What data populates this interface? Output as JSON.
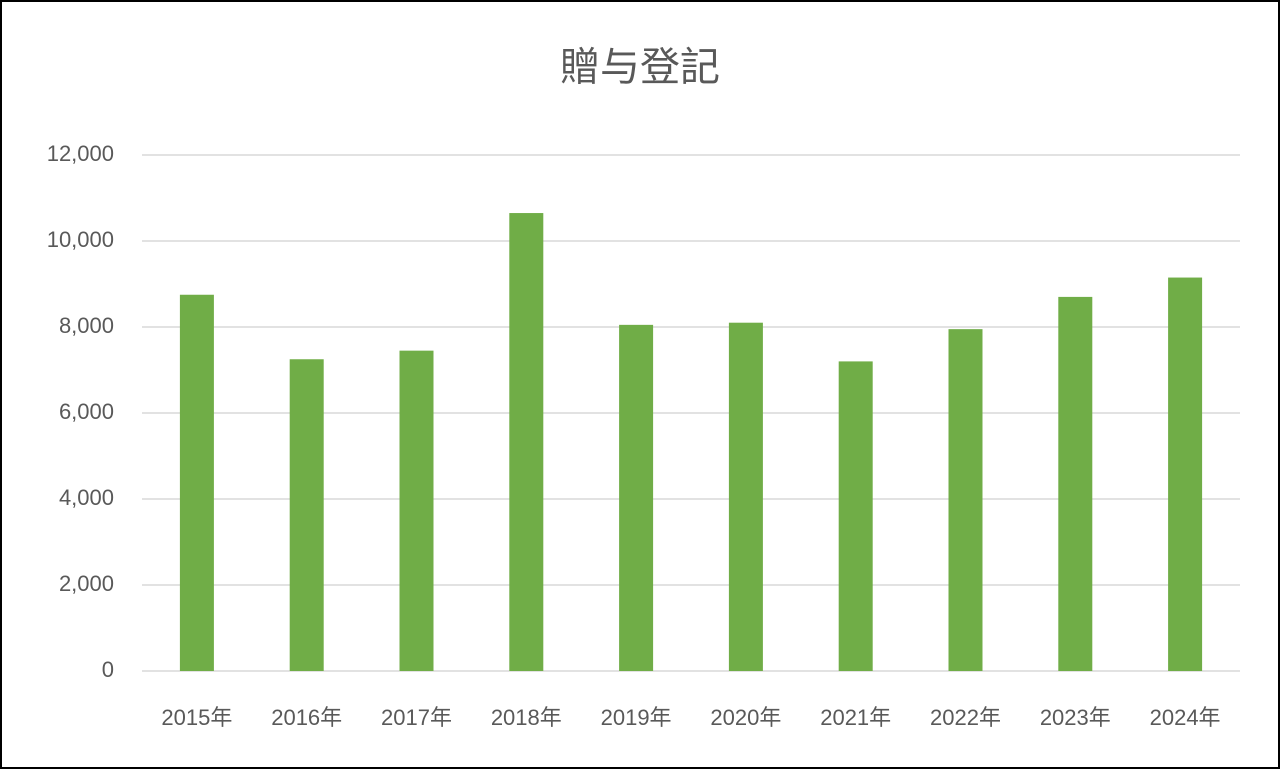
{
  "chart_data": {
    "type": "bar",
    "title": "贈与登記",
    "categories": [
      "2015年",
      "2016年",
      "2017年",
      "2018年",
      "2019年",
      "2020年",
      "2021年",
      "2022年",
      "2023年",
      "2024年"
    ],
    "values": [
      8750,
      7250,
      7450,
      10650,
      8050,
      8100,
      7200,
      7950,
      8700,
      9150
    ],
    "color": "#70ad47",
    "ylim": [
      0,
      12000
    ],
    "yticks": [
      0,
      {
        "value": 2000,
        "label": "2,000"
      },
      {
        "value": 4000,
        "label": "4,000"
      },
      {
        "value": 6000,
        "label": "6,000"
      },
      {
        "value": 8000,
        "label": "8,000"
      },
      {
        "value": 10000,
        "label": "10,000"
      },
      {
        "value": 12000,
        "label": "12,000"
      }
    ],
    "grid": true
  }
}
